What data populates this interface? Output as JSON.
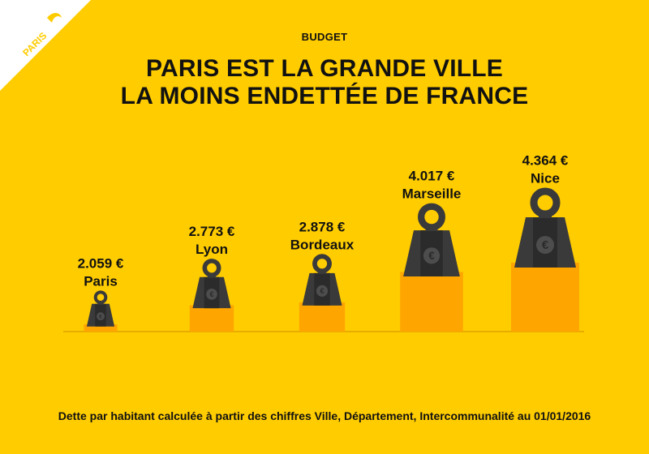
{
  "badge": {
    "text": "PARIS"
  },
  "section": "BUDGET",
  "title_line1": "PARIS EST LA GRANDE VILLE",
  "title_line2": "LA MOINS ENDETTÉE DE FRANCE",
  "footnote": "Dette par habitant calculée à partir des chiffres Ville, Département, Intercommunalité au 01/01/2016",
  "colors": {
    "background": "#FFCC00",
    "weight": "#3A3A3A",
    "weight_dark": "#2B2B2B",
    "weight_light": "#4D4D4D",
    "bar": "#FFA500",
    "axis": "#E8AC00",
    "text": "#111111",
    "badge": "#FFFFFF"
  },
  "chart_data": {
    "type": "bar",
    "unit": "€",
    "categories": [
      "Paris",
      "Lyon",
      "Bordeaux",
      "Marseille",
      "Nice"
    ],
    "values": [
      2059,
      2773,
      2878,
      4017,
      4364
    ],
    "value_labels": [
      "2.059 €",
      "2.773 €",
      "2.878 €",
      "4.017 €",
      "4.364 €"
    ],
    "icon": "euro-weight-icon"
  }
}
